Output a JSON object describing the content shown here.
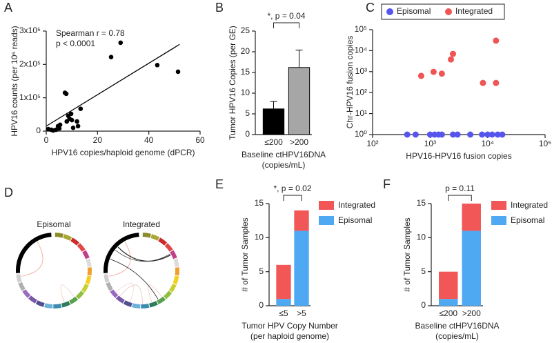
{
  "chart_data": [
    {
      "type": "scatter",
      "panel": "A",
      "xlabel": [
        "HPV16 copies/haploid genome (dPCR)"
      ],
      "ylabel": "HPV16 counts (per 10⁶ reads)",
      "annotations": [
        "Spearman r = 0.78",
        "p < 0.0001"
      ],
      "x": [
        0.8,
        2,
        2.7,
        3.8,
        4.6,
        5.4,
        5.1,
        7.3,
        7.8,
        8,
        8.6,
        9.1,
        9.7,
        10,
        10.5,
        12,
        12.4,
        13.4,
        25.3,
        29,
        43.3,
        51.4
      ],
      "values": [
        6000,
        4000,
        2000,
        4000,
        15000,
        19000,
        8000,
        115000,
        112000,
        29000,
        46000,
        37000,
        52000,
        33000,
        10000,
        29000,
        15000,
        67000,
        222000,
        265000,
        198000,
        178000
      ],
      "color": "#000000",
      "fit_line": {
        "x": [
          0,
          52
        ],
        "values": [
          15000,
          260000
        ]
      },
      "xlim": [
        0,
        60
      ],
      "xticks": [
        0,
        20,
        40,
        60
      ],
      "ylim": [
        0,
        300000
      ],
      "yticks": [
        0,
        {
          "value": 100000,
          "label": "1x10⁵"
        },
        {
          "value": 200000,
          "label": "2x10⁵"
        },
        {
          "value": 300000,
          "label": "3x10⁵"
        }
      ]
    },
    {
      "type": "bar",
      "panel": "B",
      "xlabel": [
        "Baseline ctHPV16DNA",
        "(copies/mL)"
      ],
      "ylabel": "Tumor HPV16 Copies (per GE)",
      "significance": "*, p = 0.04",
      "categories": [
        "≤200",
        ">200"
      ],
      "values": [
        6.2,
        16.2
      ],
      "errors": [
        1.8,
        4.2
      ],
      "colors": [
        "#000000",
        "#a6a6a6"
      ],
      "ylim": [
        0,
        25
      ],
      "yticks": [
        0,
        5,
        10,
        15,
        20,
        25
      ]
    },
    {
      "type": "scatter",
      "panel": "C",
      "xlabel": [
        "HPV16-HPV16 fusion copies"
      ],
      "ylabel": "Chr-HPV16 fusion copies",
      "xscale": "log",
      "yscale": "log",
      "legend": "top",
      "series": [
        {
          "name": "Episomal",
          "color": "#5656ee",
          "x": [
            400,
            560,
            1000,
            1200,
            1400,
            1600,
            2500,
            3000,
            5000,
            8000,
            10000,
            12000,
            15000,
            18000
          ],
          "values": [
            1,
            1,
            1,
            1,
            1,
            1,
            1,
            1,
            1,
            1,
            1,
            1,
            1,
            1
          ]
        },
        {
          "name": "Integrated",
          "color": "#f05555",
          "x": [
            700,
            1150,
            1600,
            2300,
            2500,
            8300,
            14000,
            14000
          ],
          "values": [
            630,
            980,
            800,
            3800,
            7000,
            290,
            30000,
            290
          ]
        }
      ],
      "xlim": [
        100,
        100000
      ],
      "xticks": [
        {
          "value": 100,
          "label": "10²"
        },
        {
          "value": 1000,
          "label": "10³"
        },
        {
          "value": 10000,
          "label": "10⁴"
        },
        {
          "value": 100000,
          "label": "10⁵"
        }
      ],
      "ylim": [
        1,
        100000
      ],
      "yticks": [
        {
          "value": 1,
          "label": "10⁰"
        },
        {
          "value": 10,
          "label": "10¹"
        },
        {
          "value": 100,
          "label": "10²"
        },
        {
          "value": 1000,
          "label": "10³"
        },
        {
          "value": 10000,
          "label": "10⁴"
        },
        {
          "value": 100000,
          "label": "10⁵"
        }
      ]
    },
    {
      "type": "stacked",
      "panel": "E",
      "xlabel": [
        "Tumor HPV Copy Number",
        "(per haploid genome)"
      ],
      "ylabel": "# of Tumor Samples",
      "significance": "*, p = 0.02",
      "legend": "upper right",
      "categories": [
        "≤5",
        ">5"
      ],
      "series": [
        {
          "name": "Episomal",
          "color": "#4ea8f2",
          "values": [
            1,
            11
          ]
        },
        {
          "name": "Integrated",
          "color": "#f25757",
          "values": [
            5,
            3
          ]
        }
      ],
      "ylim": [
        0,
        15
      ],
      "yticks": [
        0,
        5,
        10,
        15
      ]
    },
    {
      "type": "stacked",
      "panel": "F",
      "xlabel": [
        "Baseline ctHPV16DNA",
        "(copies/mL)"
      ],
      "ylabel": "# of Tumor Samples",
      "significance": "p = 0.11",
      "legend": "upper right",
      "categories": [
        "≤200",
        ">200"
      ],
      "series": [
        {
          "name": "Episomal",
          "color": "#4ea8f2",
          "values": [
            1,
            11
          ]
        },
        {
          "name": "Integrated",
          "color": "#f25757",
          "values": [
            4,
            4
          ]
        }
      ],
      "ylim": [
        0,
        15
      ],
      "yticks": [
        0,
        5,
        10,
        15
      ]
    }
  ],
  "circos": {
    "panel": "D",
    "labels": [
      "Episomal",
      "Integrated"
    ]
  }
}
